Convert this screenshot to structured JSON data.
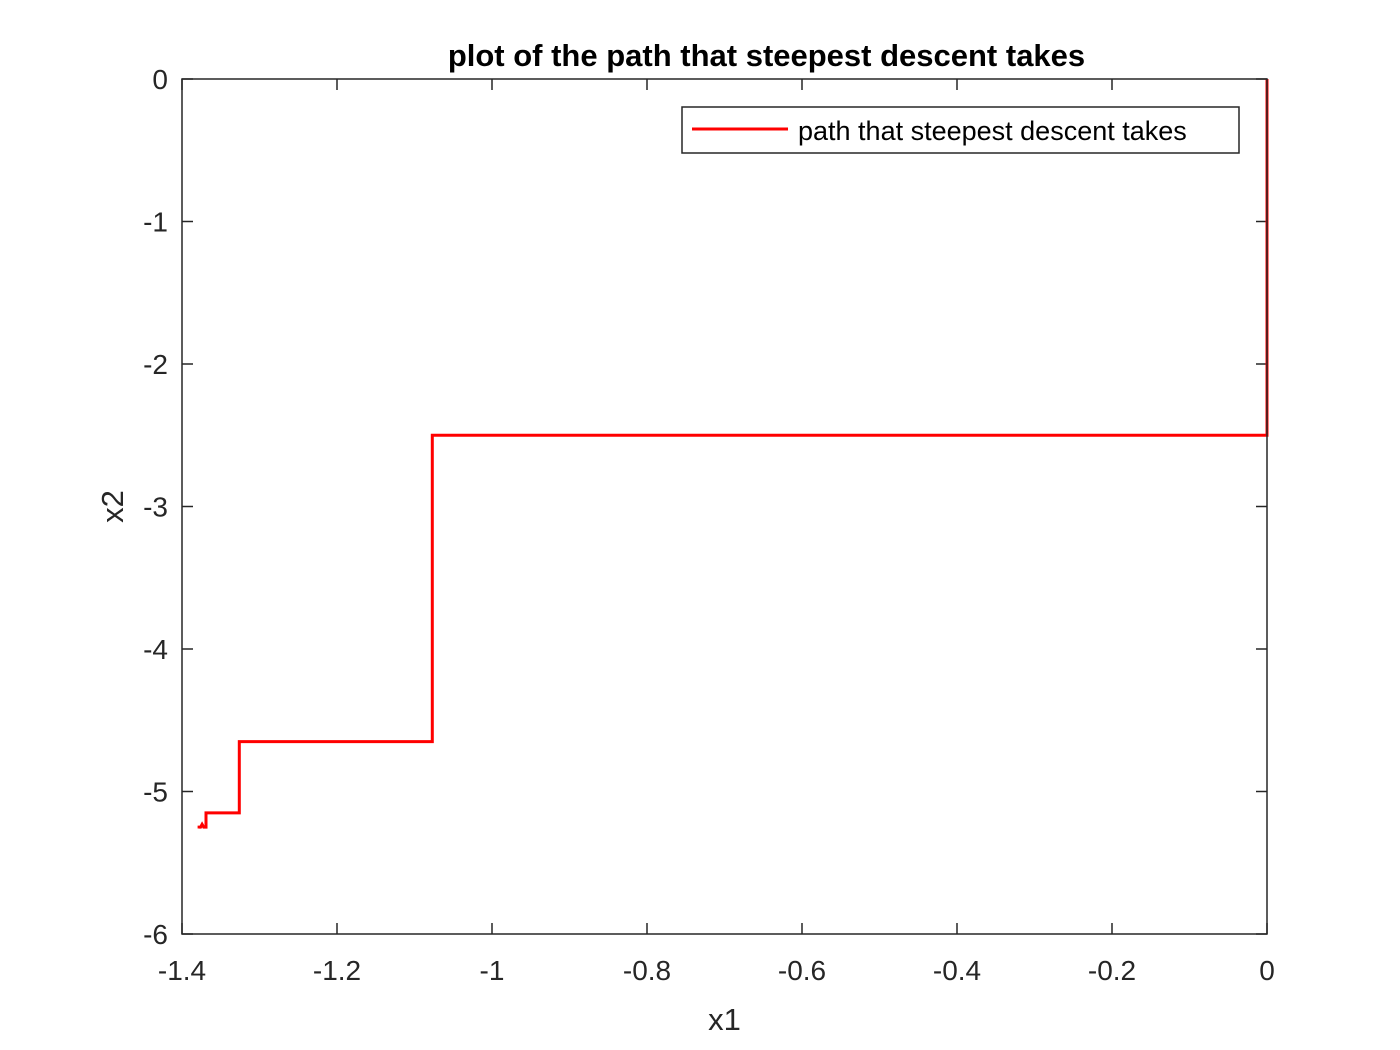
{
  "chart_data": {
    "type": "line",
    "title": "plot of the path that steepest descent takes",
    "xlabel": "x1",
    "ylabel": "x2",
    "xlim": [
      -1.4,
      0
    ],
    "ylim": [
      -6,
      0
    ],
    "xticks": [
      -1.4,
      -1.2,
      -1,
      -0.8,
      -0.6,
      -0.4,
      -0.2,
      0
    ],
    "xtick_labels": [
      "-1.4",
      "-1.2",
      "-1",
      "-0.8",
      "-0.6",
      "-0.4",
      "-0.2",
      "0"
    ],
    "yticks": [
      0,
      -1,
      -2,
      -3,
      -4,
      -5,
      -6
    ],
    "ytick_labels": [
      "0",
      "-1",
      "-2",
      "-3",
      "-4",
      "-5",
      "-6"
    ],
    "grid": false,
    "legend_position": "top-right",
    "series": [
      {
        "name": "path that steepest descent takes",
        "color": "#ff0000",
        "x": [
          0,
          0,
          -1.077,
          -1.077,
          -1.326,
          -1.326,
          -1.369,
          -1.369,
          -1.372,
          -1.374,
          -1.376,
          -1.378,
          -1.378
        ],
        "y": [
          0,
          -2.5,
          -2.5,
          -4.65,
          -4.65,
          -5.15,
          -5.15,
          -5.25,
          -5.25,
          -5.23,
          -5.25,
          -5.25,
          -5.26
        ]
      }
    ]
  }
}
